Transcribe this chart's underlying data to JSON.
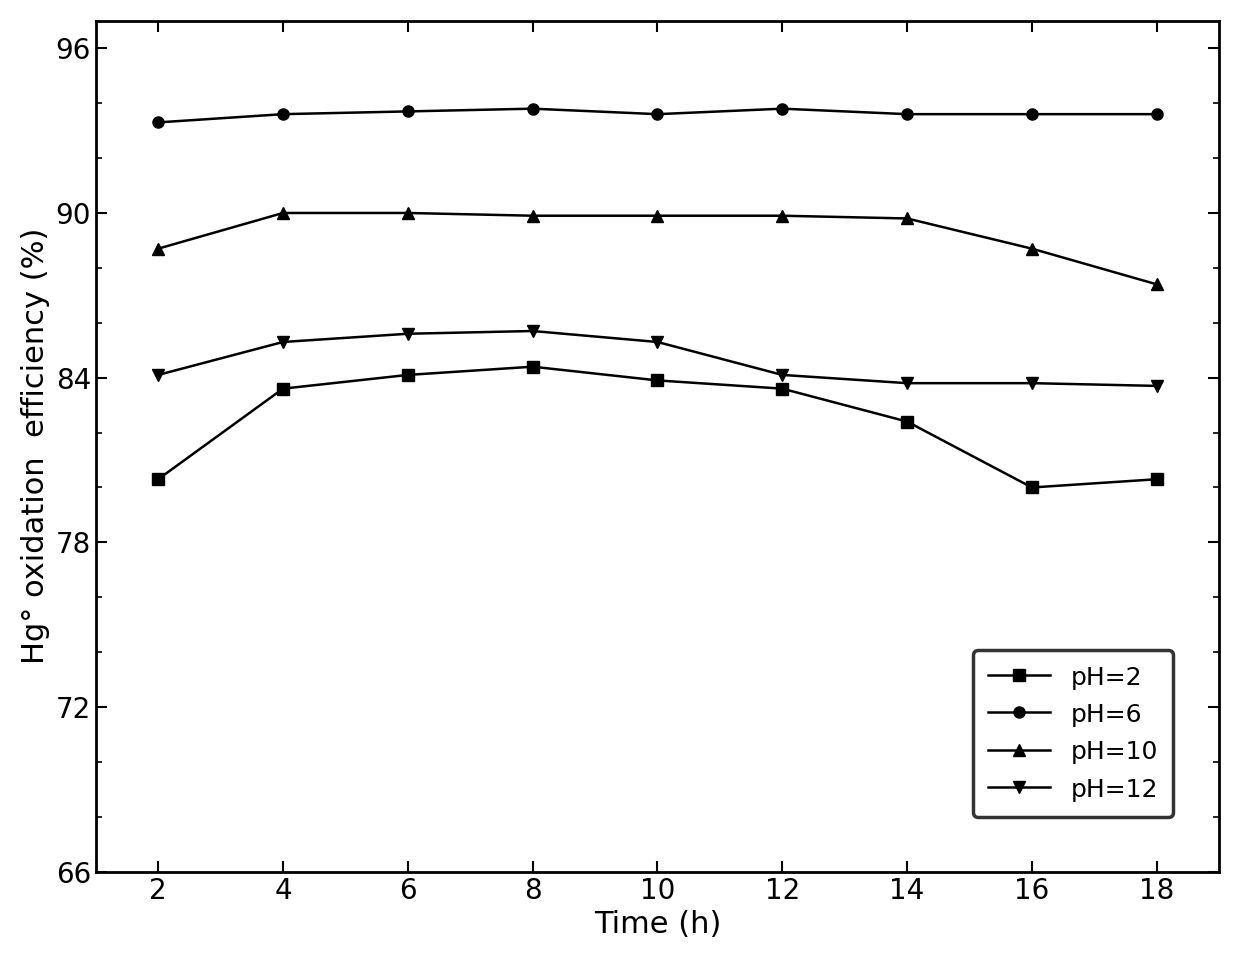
{
  "x": [
    2,
    4,
    6,
    8,
    10,
    12,
    14,
    16,
    18
  ],
  "pH2": [
    80.3,
    83.6,
    84.1,
    84.4,
    83.9,
    83.6,
    82.4,
    80.0,
    80.3
  ],
  "pH6": [
    93.3,
    93.6,
    93.7,
    93.8,
    93.6,
    93.8,
    93.6,
    93.6,
    93.6
  ],
  "pH10": [
    88.7,
    90.0,
    90.0,
    89.9,
    89.9,
    89.9,
    89.8,
    88.7,
    87.4
  ],
  "pH12": [
    84.1,
    85.3,
    85.6,
    85.7,
    85.3,
    84.1,
    83.8,
    83.8,
    83.7
  ],
  "xlabel": "Time (h)",
  "ylabel": "Hg° oxidation  efficiency (%)",
  "ylim": [
    66,
    97
  ],
  "xlim": [
    1,
    19
  ],
  "yticks_major": [
    66,
    72,
    78,
    84,
    90,
    96
  ],
  "yticks_minor": [
    68,
    70,
    74,
    76,
    80,
    82,
    86,
    88,
    92,
    94
  ],
  "xticks": [
    2,
    4,
    6,
    8,
    10,
    12,
    14,
    16,
    18
  ],
  "legend_labels": [
    "pH=2",
    "pH=6",
    "pH=10",
    "pH=12"
  ],
  "line_color": "#000000",
  "marker_pH2": "s",
  "marker_pH6": "o",
  "marker_pH10": "^",
  "marker_pH12": "v",
  "linewidth": 1.8,
  "markersize": 8,
  "font_size_ticks": 20,
  "font_size_label": 22,
  "font_size_legend": 18,
  "figwidth": 12.4,
  "figheight": 9.6,
  "dpi": 100
}
